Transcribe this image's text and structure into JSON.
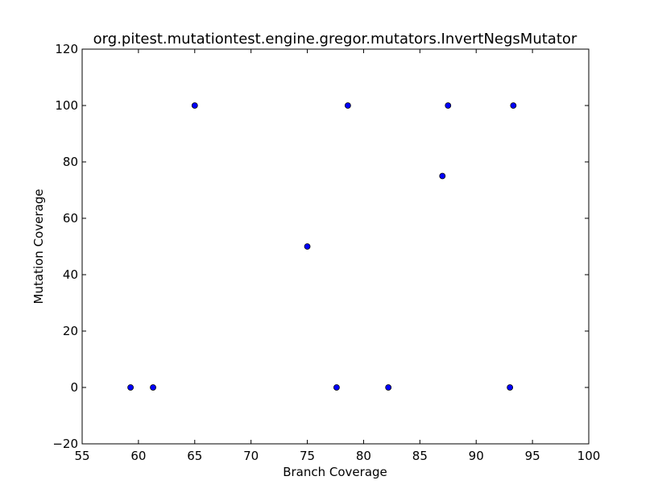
{
  "chart_data": {
    "type": "scatter",
    "title": "org.pitest.mutationtest.engine.gregor.mutators.InvertNegsMutator",
    "xlabel": "Branch Coverage",
    "ylabel": "Mutation Coverage",
    "xlim": [
      55,
      100
    ],
    "ylim": [
      -20,
      120
    ],
    "xticks": [
      55,
      60,
      65,
      70,
      75,
      80,
      85,
      90,
      95,
      100
    ],
    "yticks": [
      -20,
      0,
      20,
      40,
      60,
      80,
      100,
      120
    ],
    "xtick_labels": [
      "55",
      "60",
      "65",
      "70",
      "75",
      "80",
      "85",
      "90",
      "95",
      "100"
    ],
    "ytick_labels": [
      "−20",
      "0",
      "20",
      "40",
      "60",
      "80",
      "100",
      "120"
    ],
    "grid": false,
    "legend": "none",
    "marker_color": "#0000ff",
    "points": [
      {
        "x": 59.3,
        "y": 0
      },
      {
        "x": 61.3,
        "y": 0
      },
      {
        "x": 65.0,
        "y": 100
      },
      {
        "x": 75.0,
        "y": 50
      },
      {
        "x": 77.6,
        "y": 0
      },
      {
        "x": 78.6,
        "y": 100
      },
      {
        "x": 82.2,
        "y": 0
      },
      {
        "x": 87.0,
        "y": 75
      },
      {
        "x": 87.5,
        "y": 100
      },
      {
        "x": 93.0,
        "y": 0
      },
      {
        "x": 93.3,
        "y": 100
      }
    ]
  }
}
